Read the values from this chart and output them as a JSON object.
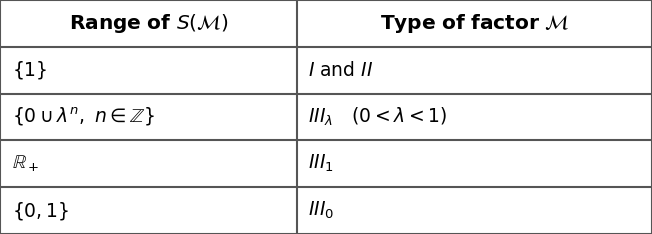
{
  "col1_header": "\\textbf{Range of } $S(\\mathcal{M})$",
  "col2_header": "\\textbf{Type of factor} $\\mathcal{M}$",
  "col1_header_math": "Range of $S(\\mathcal{M})$",
  "col2_header_math": "Type of factor $\\mathcal{M}$",
  "rows": [
    [
      "$\\{1\\}$",
      "$I$ and $II$"
    ],
    [
      "$\\{0 \\cup \\lambda^n,\\ n \\in \\mathbb{Z}\\}$",
      "$III_{\\lambda}\\quad (0 < \\lambda < 1)$"
    ],
    [
      "$\\mathbb{R}_+$",
      "$III_1$"
    ],
    [
      "$\\{0, 1\\}$",
      "$III_0$"
    ]
  ],
  "col_split": 0.455,
  "bg_color": "#ffffff",
  "border_color": "#555555",
  "text_color": "#000000",
  "header_fontsize": 14.5,
  "cell_fontsize": 13.5,
  "lw": 1.5
}
